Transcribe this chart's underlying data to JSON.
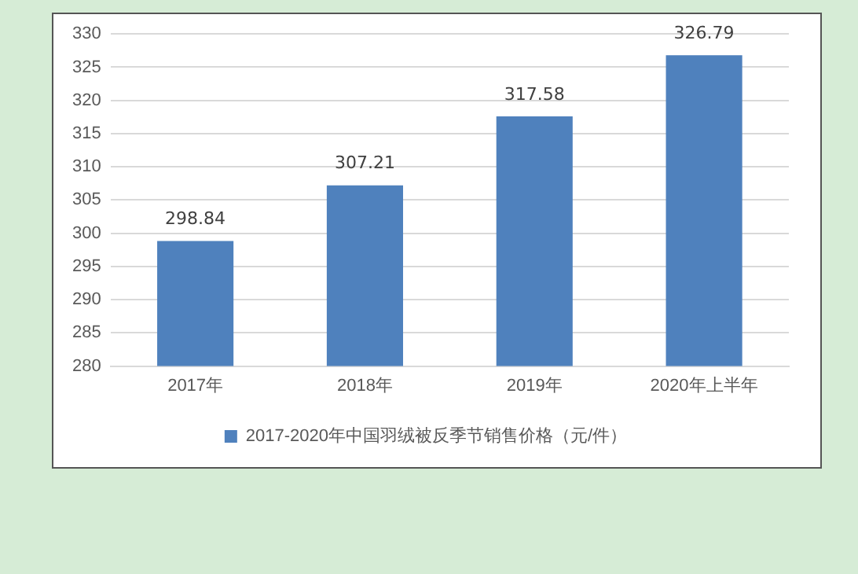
{
  "chart_data": {
    "type": "bar",
    "categories": [
      "2017年",
      "2018年",
      "2019年",
      "2020年上半年"
    ],
    "series": [
      {
        "name": "2017-2020年中国羽绒被反季节销售价格（元/件）",
        "color": "#4f81bd",
        "values": [
          298.84,
          307.21,
          317.58,
          326.79
        ]
      }
    ],
    "ylim": [
      280,
      330
    ],
    "yticks": [
      280,
      285,
      290,
      295,
      300,
      305,
      310,
      315,
      320,
      325,
      330
    ],
    "grid": "y",
    "legend": "bottom",
    "data_labels": true
  }
}
